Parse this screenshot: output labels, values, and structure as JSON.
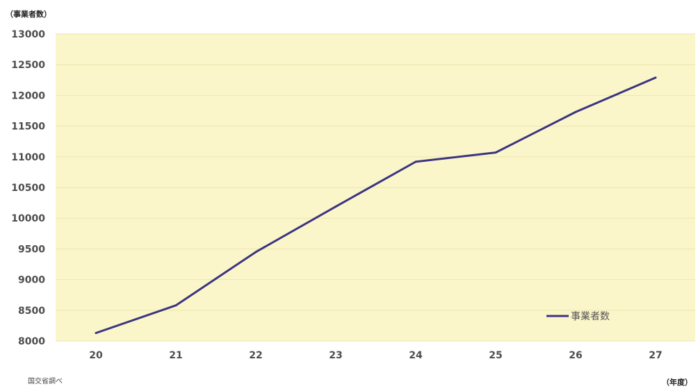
{
  "chart_data": {
    "type": "line",
    "y_unit_label": "（事業者数）",
    "x_unit_label": "（年度）",
    "source": "国交省調べ",
    "x": [
      "20",
      "21",
      "22",
      "23",
      "24",
      "25",
      "26",
      "27"
    ],
    "series": [
      {
        "name": "事業者数",
        "values": [
          8130,
          8580,
          9450,
          10190,
          10920,
          11070,
          11730,
          12290
        ]
      }
    ],
    "ylim": [
      8000,
      13000
    ],
    "y_ticks": [
      8000,
      8500,
      9000,
      9500,
      10000,
      10500,
      11000,
      11500,
      12000,
      12500,
      13000
    ],
    "grid": true,
    "legend_position": "bottom-right",
    "colors": {
      "plot_background": "#fbf6c9",
      "grid": "#ece3b0",
      "line": "#3b3482"
    }
  }
}
